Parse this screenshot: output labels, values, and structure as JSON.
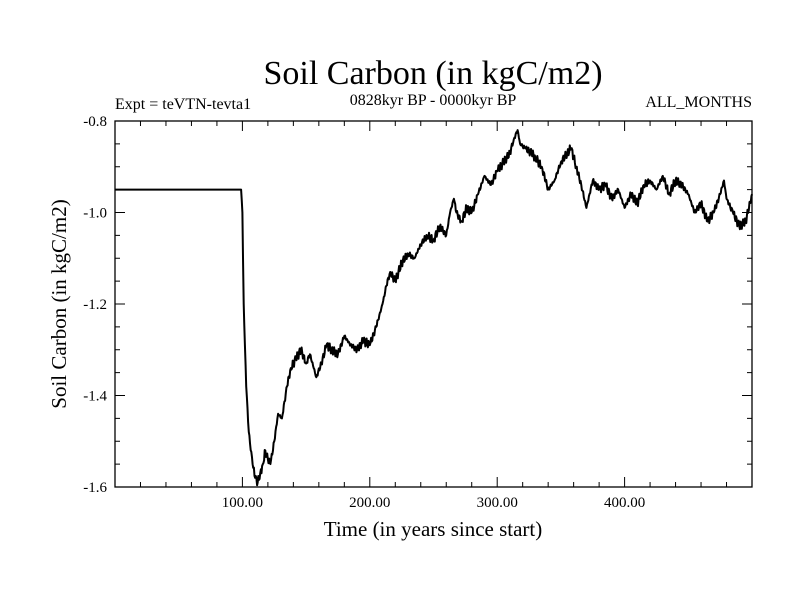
{
  "chart_data": {
    "type": "line",
    "title": "Soil Carbon (in kgC/m2)",
    "subtitle_left": "Expt = teVTN-tevta1",
    "subtitle_center": "0828kyr BP - 0000kyr BP",
    "subtitle_right": "ALL_MONTHS",
    "xlabel": "Time (in years since start)",
    "ylabel": "Soil Carbon (in kgC/m2)",
    "xlim": [
      0,
      500
    ],
    "ylim": [
      -1.6,
      -0.8
    ],
    "x_ticks": [
      100,
      200,
      300,
      400
    ],
    "x_tick_labels": [
      "100.00",
      "200.00",
      "300.00",
      "400.00"
    ],
    "y_ticks": [
      -1.6,
      -1.4,
      -1.2,
      -1.0,
      -0.8
    ],
    "y_tick_labels": [
      "-1.6",
      "-1.4",
      "-1.2",
      "-1.0",
      "-0.8"
    ],
    "grid": false,
    "series": [
      {
        "name": "Soil Carbon",
        "x": [
          0,
          99,
          100,
          101,
          103,
          105,
          108,
          110,
          112,
          114,
          116,
          118,
          120,
          122,
          125,
          128,
          131,
          135,
          138,
          142,
          146,
          150,
          153,
          156,
          158,
          162,
          166,
          170,
          175,
          180,
          185,
          190,
          195,
          200,
          205,
          210,
          213,
          216,
          220,
          225,
          230,
          235,
          240,
          245,
          250,
          255,
          260,
          263,
          266,
          268,
          272,
          276,
          280,
          285,
          290,
          295,
          300,
          305,
          310,
          313,
          316,
          318,
          322,
          327,
          330,
          335,
          340,
          345,
          350,
          355,
          358,
          362,
          366,
          370,
          375,
          380,
          385,
          390,
          395,
          400,
          405,
          410,
          415,
          420,
          425,
          430,
          435,
          440,
          445,
          450,
          455,
          460,
          465,
          470,
          475,
          478,
          480,
          485,
          490,
          495,
          500
        ],
        "y": [
          -0.95,
          -0.95,
          -1.0,
          -1.2,
          -1.38,
          -1.48,
          -1.55,
          -1.58,
          -1.59,
          -1.57,
          -1.55,
          -1.52,
          -1.54,
          -1.55,
          -1.5,
          -1.44,
          -1.45,
          -1.38,
          -1.34,
          -1.32,
          -1.3,
          -1.33,
          -1.31,
          -1.34,
          -1.36,
          -1.33,
          -1.29,
          -1.3,
          -1.31,
          -1.27,
          -1.29,
          -1.3,
          -1.28,
          -1.29,
          -1.25,
          -1.2,
          -1.16,
          -1.13,
          -1.15,
          -1.11,
          -1.09,
          -1.1,
          -1.07,
          -1.05,
          -1.06,
          -1.03,
          -1.05,
          -1.0,
          -0.97,
          -1.0,
          -1.02,
          -0.99,
          -1.0,
          -0.96,
          -0.92,
          -0.94,
          -0.91,
          -0.89,
          -0.87,
          -0.84,
          -0.82,
          -0.85,
          -0.86,
          -0.87,
          -0.88,
          -0.9,
          -0.95,
          -0.93,
          -0.89,
          -0.87,
          -0.86,
          -0.9,
          -0.94,
          -0.99,
          -0.93,
          -0.95,
          -0.94,
          -0.97,
          -0.95,
          -0.99,
          -0.96,
          -0.98,
          -0.94,
          -0.93,
          -0.95,
          -0.92,
          -0.96,
          -0.93,
          -0.94,
          -0.96,
          -1.0,
          -0.98,
          -1.02,
          -1.0,
          -0.96,
          -0.93,
          -0.97,
          -1.0,
          -1.03,
          -1.02,
          -0.96
        ]
      }
    ]
  }
}
